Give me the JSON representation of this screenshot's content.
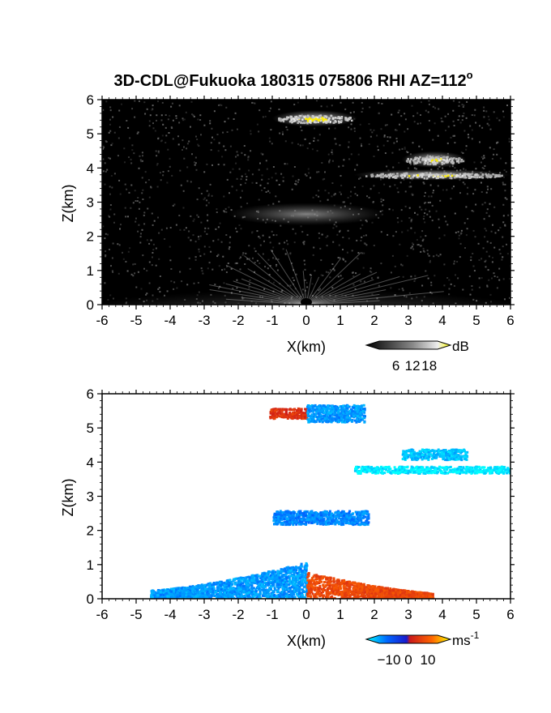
{
  "chart_data": [
    {
      "type": "heatmap",
      "title": "3D-CDL@Fukuoka 180315 075806 RHI AZ=112",
      "title_superscript": "o",
      "xlabel": "X(km)",
      "ylabel": "Z(km)",
      "xlim": [
        -6,
        6
      ],
      "ylim": [
        0,
        6
      ],
      "xticks": [
        "-6",
        "-5",
        "-4",
        "-3",
        "-2",
        "-1",
        "0",
        "1",
        "2",
        "3",
        "4",
        "5",
        "6"
      ],
      "yticks": [
        "0",
        "1",
        "2",
        "3",
        "4",
        "5",
        "6"
      ],
      "background": "#000000",
      "colorbar": {
        "unit": "dB",
        "ticks": [
          "6",
          "12",
          "18"
        ],
        "range": [
          0,
          21
        ],
        "colormap": "grayscale-to-yellow"
      },
      "features": [
        {
          "label": "ground clutter fan",
          "x": [
            -6,
            6
          ],
          "z": [
            0,
            0.9
          ],
          "value_db": 8
        },
        {
          "label": "diffuse layer",
          "x": [
            -2,
            2
          ],
          "z": [
            2.5,
            2.8
          ],
          "value_db": 9
        },
        {
          "label": "cloud layer top",
          "x": [
            -1,
            1.5
          ],
          "z": [
            5.3,
            5.6
          ],
          "value_db": 19
        },
        {
          "label": "cloud layer right upper",
          "x": [
            2.8,
            4.7
          ],
          "z": [
            4.1,
            4.4
          ],
          "value_db": 18
        },
        {
          "label": "cloud layer right lower",
          "x": [
            1.4,
            6
          ],
          "z": [
            3.7,
            3.9
          ],
          "value_db": 18
        }
      ]
    },
    {
      "type": "heatmap",
      "xlabel": "X(km)",
      "ylabel": "Z(km)",
      "xlim": [
        -6,
        6
      ],
      "ylim": [
        0,
        6
      ],
      "xticks": [
        "-6",
        "-5",
        "-4",
        "-3",
        "-2",
        "-1",
        "0",
        "1",
        "2",
        "3",
        "4",
        "5",
        "6"
      ],
      "yticks": [
        "0",
        "1",
        "2",
        "3",
        "4",
        "5",
        "6"
      ],
      "background": "#ffffff",
      "colorbar": {
        "unit": "ms",
        "unit_superscript": "-1",
        "ticks": [
          "−10",
          "0",
          "10"
        ],
        "range": [
          -15,
          15
        ],
        "colormap": "blue-red-diverging"
      },
      "features": [
        {
          "label": "top layer approaching",
          "x": [
            -1.1,
            0
          ],
          "z": [
            5.3,
            5.6
          ],
          "velocity": 3
        },
        {
          "label": "top layer receding",
          "x": [
            0,
            1.7
          ],
          "z": [
            5.2,
            5.7
          ],
          "velocity": -10
        },
        {
          "label": "right upper layer",
          "x": [
            2.8,
            4.7
          ],
          "z": [
            4.1,
            4.4
          ],
          "velocity": -12
        },
        {
          "label": "right lower layer",
          "x": [
            1.4,
            6
          ],
          "z": [
            3.7,
            3.9
          ],
          "velocity": -14
        },
        {
          "label": "mid layer",
          "x": [
            -1,
            1.8
          ],
          "z": [
            2.2,
            2.6
          ],
          "velocity": -9
        },
        {
          "label": "near-surface left",
          "x": [
            -4.6,
            0
          ],
          "z": [
            0,
            1.1
          ],
          "velocity": -10
        },
        {
          "label": "near-surface right",
          "x": [
            0,
            3.7
          ],
          "z": [
            0,
            0.8
          ],
          "velocity": 5
        }
      ]
    }
  ]
}
